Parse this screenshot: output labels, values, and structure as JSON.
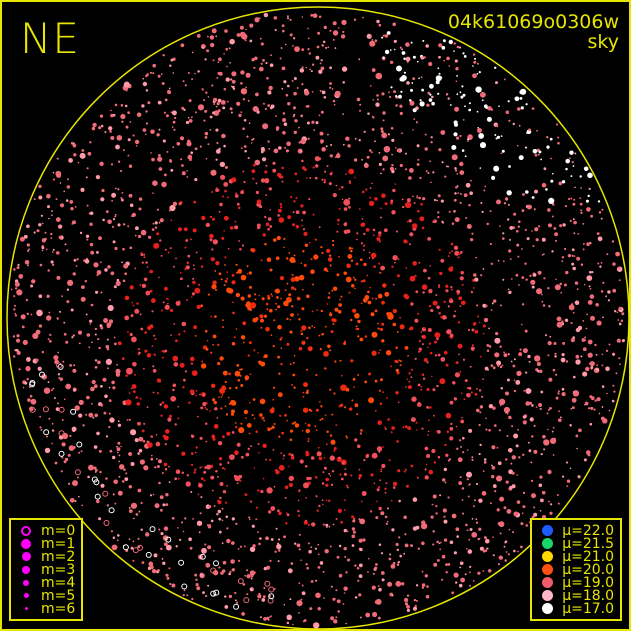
{
  "header": {
    "direction": "NE",
    "frame_id": "04k61069o0306w",
    "mode": "sky"
  },
  "frame_color": "#e6e600",
  "magnitude_legend": {
    "color": "#ff00ff",
    "items": [
      {
        "label": "m=0",
        "style": "ring"
      },
      {
        "label": "m=1",
        "style": "dot"
      },
      {
        "label": "m=2",
        "style": "dot"
      },
      {
        "label": "m=3",
        "style": "dot"
      },
      {
        "label": "m=4",
        "style": "dot"
      },
      {
        "label": "m=5",
        "style": "dot"
      },
      {
        "label": "m=6",
        "style": "dot"
      }
    ]
  },
  "brightness_legend": {
    "items": [
      {
        "label": "μ=22.0",
        "color": "#1e5bff"
      },
      {
        "label": "μ=21.5",
        "color": "#19d66a"
      },
      {
        "label": "μ=21.0",
        "color": "#ffd800"
      },
      {
        "label": "μ=20.0",
        "color": "#ff5010"
      },
      {
        "label": "μ=19.0",
        "color": "#f05a6a"
      },
      {
        "label": "μ=18.0",
        "color": "#ffb6c6"
      },
      {
        "label": "μ=17.0",
        "color": "#ffffff"
      }
    ]
  }
}
